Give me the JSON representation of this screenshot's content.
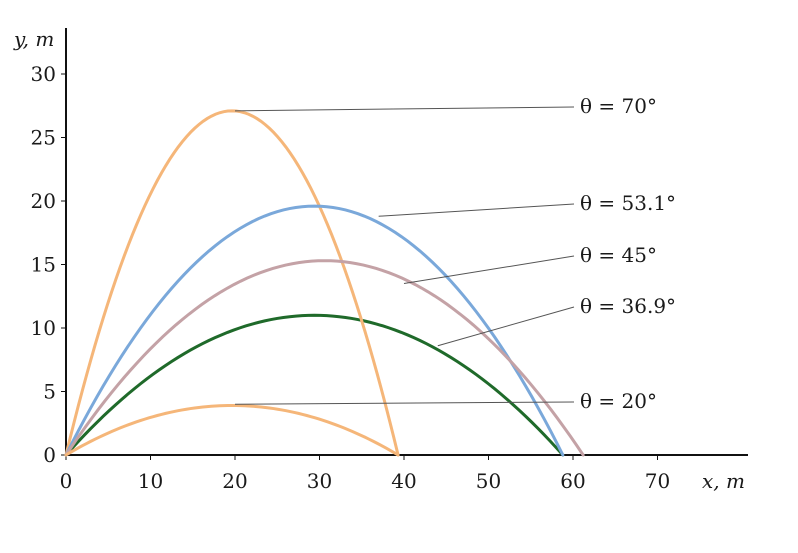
{
  "chart_data": {
    "type": "line",
    "title": "",
    "xlabel": "x, m",
    "ylabel": "y, m",
    "xlim": [
      0,
      80
    ],
    "ylim": [
      0,
      33
    ],
    "x_ticks": [
      0,
      10,
      20,
      30,
      40,
      50,
      60,
      70
    ],
    "y_ticks": [
      0,
      5,
      10,
      15,
      20,
      25,
      30
    ],
    "grid": false,
    "legend": "labels with leader lines at right",
    "series": [
      {
        "name": "θ = 70°",
        "angle_deg": 70,
        "range": 39.3,
        "max_height": 27.1,
        "color": "#f5b679",
        "label_at": [
          20,
          27.1
        ]
      },
      {
        "name": "θ = 53.1°",
        "angle_deg": 53.1,
        "range": 58.8,
        "max_height": 19.6,
        "color": "#7aa8da",
        "label_at": [
          37,
          18.8
        ]
      },
      {
        "name": "θ = 45°",
        "angle_deg": 45,
        "range": 61.2,
        "max_height": 15.3,
        "color": "#c4a2a6",
        "label_at": [
          40,
          13.5
        ]
      },
      {
        "name": "θ = 36.9°",
        "angle_deg": 36.9,
        "range": 58.8,
        "max_height": 11.0,
        "color": "#1f6a2a",
        "label_at": [
          44,
          8.6
        ]
      },
      {
        "name": "θ = 20°",
        "angle_deg": 20,
        "range": 39.3,
        "max_height": 3.9,
        "color": "#f5b679",
        "label_at": [
          20,
          4.0
        ]
      }
    ]
  }
}
